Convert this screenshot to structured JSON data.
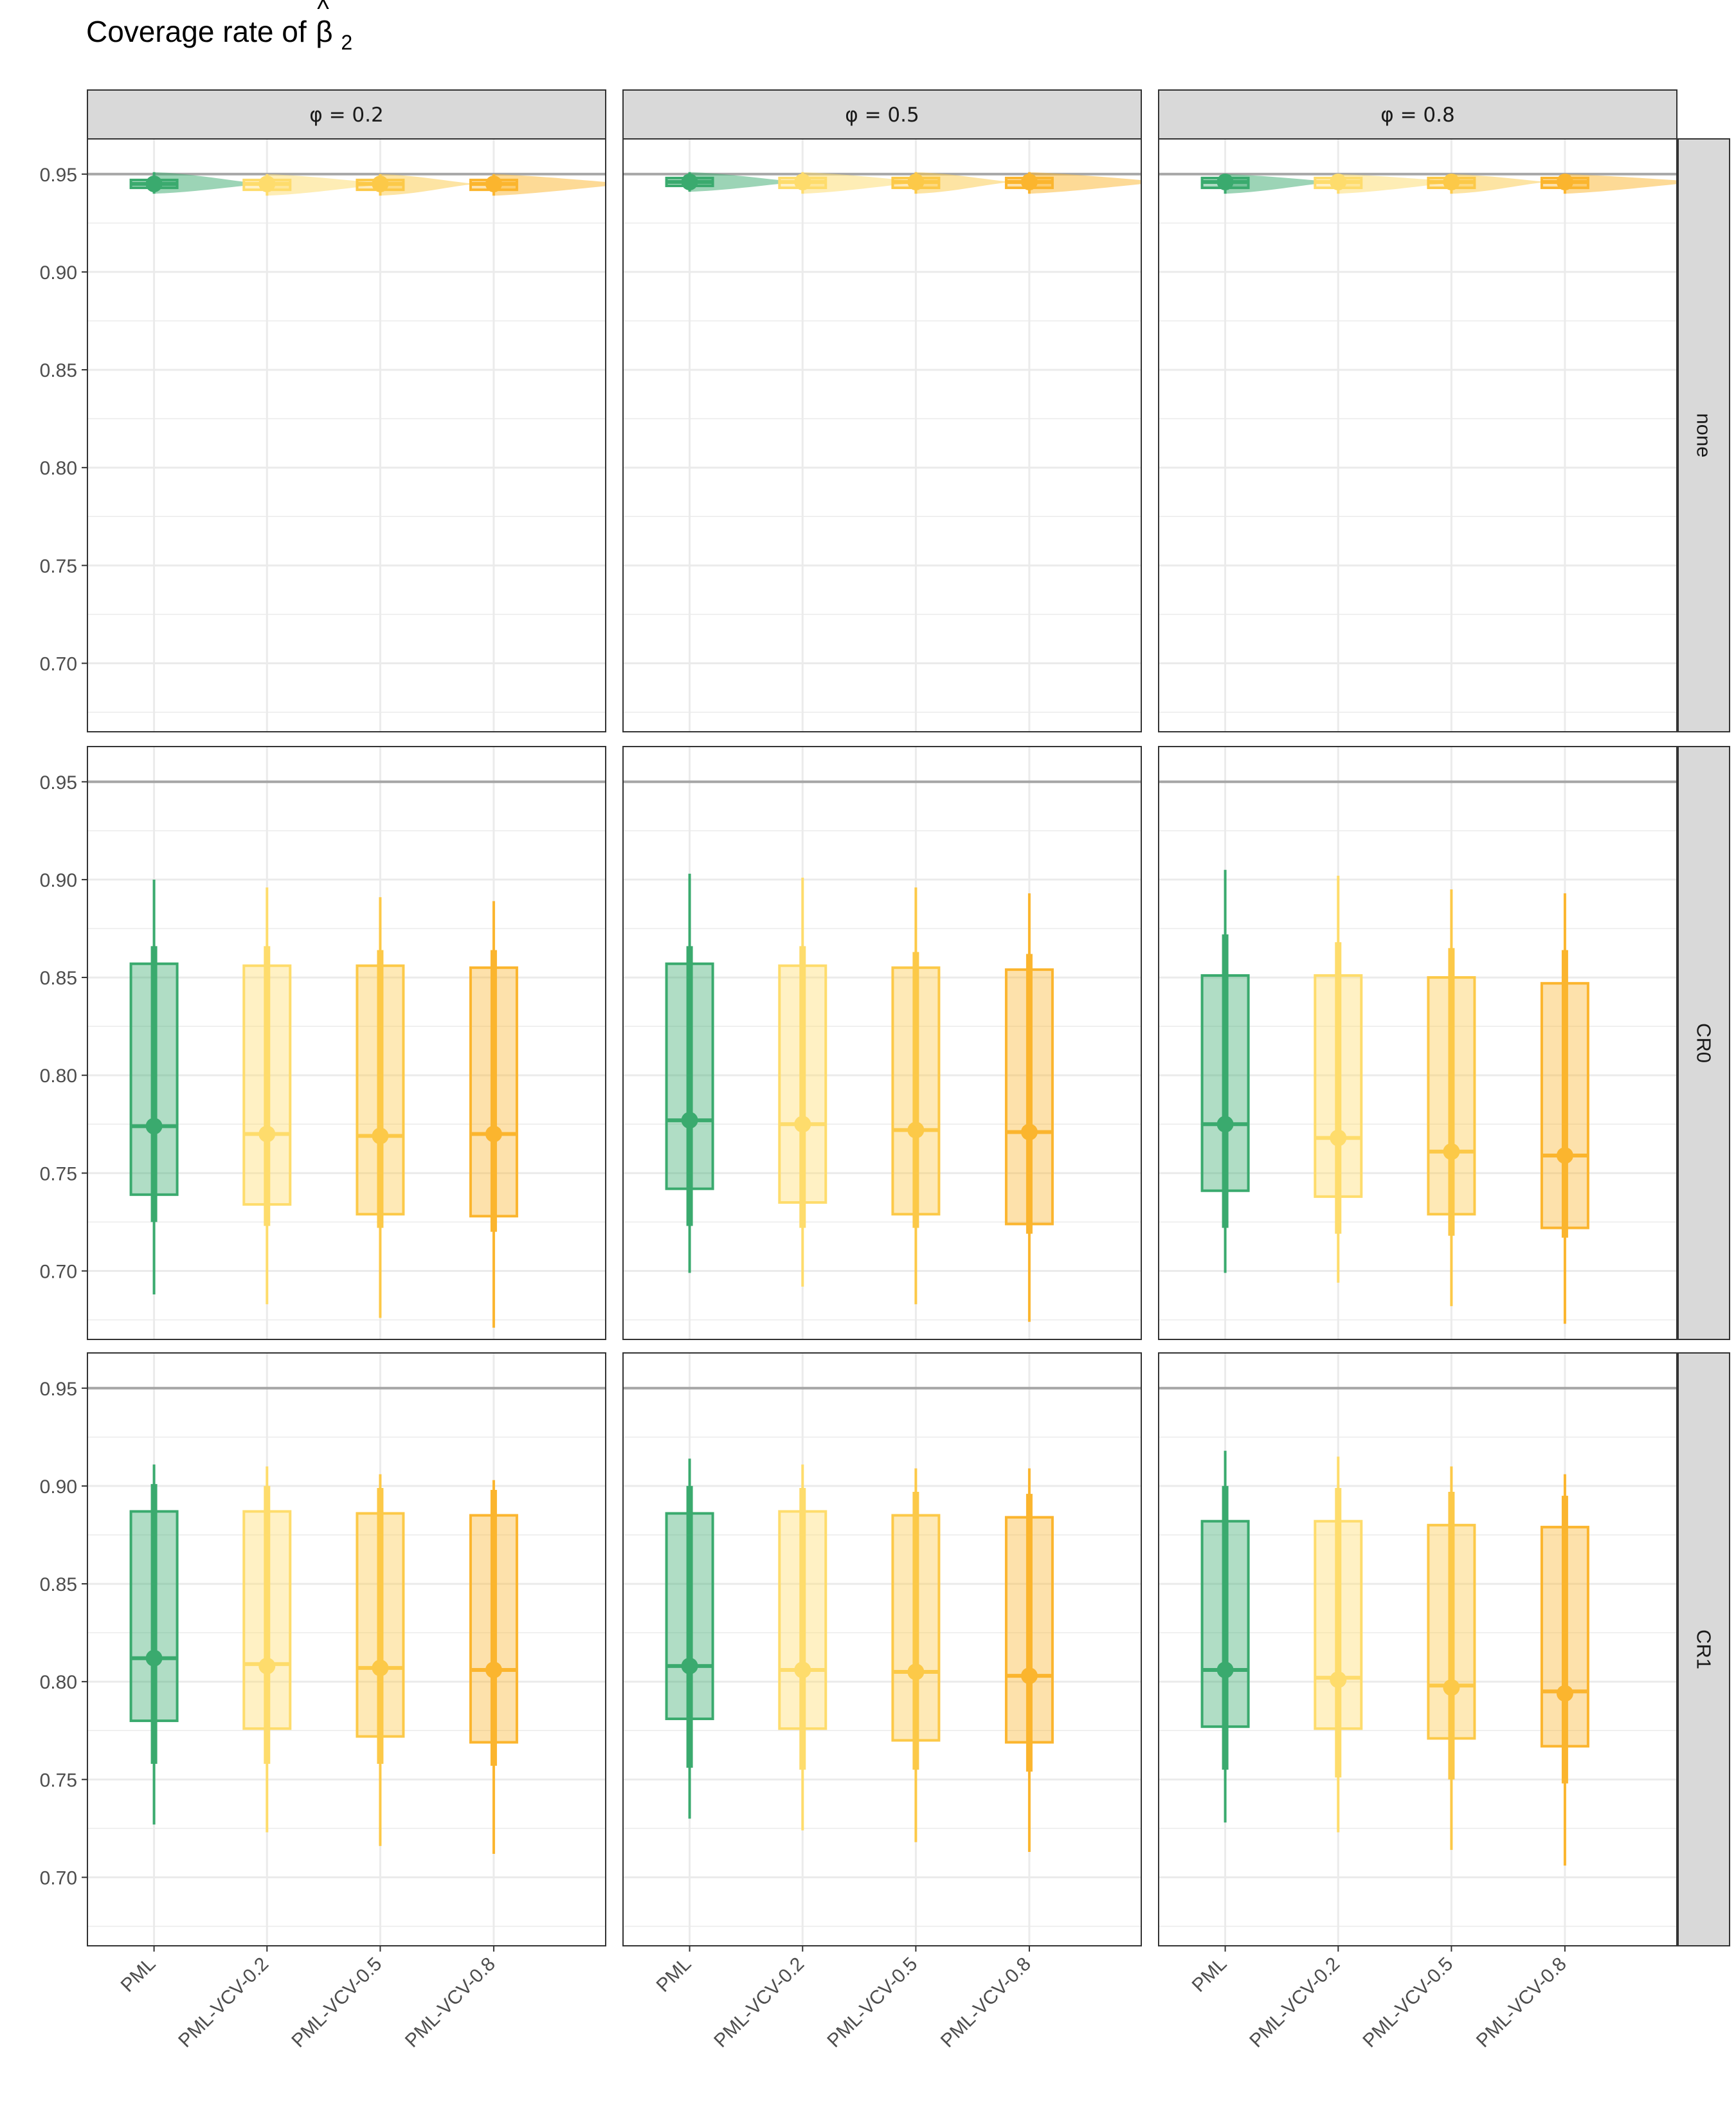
{
  "title": {
    "text": "Coverage rate of",
    "symbol": "β",
    "hat": "^",
    "subscript": "2"
  },
  "colors": {
    "PML": "#3aaa6e",
    "PML-VCV-0.2": "#fedc6c",
    "PML-VCV-0.5": "#fcc948",
    "PML-VCV-0.8": "#fbb52e",
    "strip_fill": "#d9d9d9",
    "reference_line": "#a6a6a6",
    "grid": "#ebebeb"
  },
  "chart_data": {
    "type": "boxplot-with-halfviolin",
    "columns": [
      "φ = 0.2",
      "φ = 0.5",
      "φ = 0.8"
    ],
    "rows": [
      "none",
      "CR0",
      "CR1"
    ],
    "categories": [
      "PML",
      "PML-VCV-0.2",
      "PML-VCV-0.5",
      "PML-VCV-0.8"
    ],
    "y_ticks": [
      0.7,
      0.75,
      0.8,
      0.85,
      0.9,
      0.95
    ],
    "y_tick_labels": [
      "0.70",
      "0.75",
      "0.80",
      "0.85",
      "0.90",
      "0.95"
    ],
    "ylim": [
      0.665,
      0.968
    ],
    "reference_line": 0.95,
    "grid": true,
    "panels": [
      {
        "row": "none",
        "col": "φ = 0.2",
        "boxes": [
          {
            "min": 0.94,
            "lo": 0.942,
            "q1": 0.943,
            "median": 0.945,
            "q3": 0.947,
            "hi": 0.948,
            "max": 0.951,
            "mean": 0.945,
            "violin": 0.935
          },
          {
            "min": 0.939,
            "lo": 0.941,
            "q1": 0.942,
            "median": 0.945,
            "q3": 0.947,
            "hi": 0.948,
            "max": 0.95,
            "mean": 0.945,
            "violin": 0.94
          },
          {
            "min": 0.939,
            "lo": 0.941,
            "q1": 0.942,
            "median": 0.945,
            "q3": 0.947,
            "hi": 0.948,
            "max": 0.95,
            "mean": 0.945,
            "violin": 0.93
          },
          {
            "min": 0.939,
            "lo": 0.941,
            "q1": 0.942,
            "median": 0.945,
            "q3": 0.947,
            "hi": 0.948,
            "max": 0.95,
            "mean": 0.945,
            "violin": 0.945
          }
        ]
      },
      {
        "row": "none",
        "col": "φ = 0.5",
        "boxes": [
          {
            "min": 0.941,
            "lo": 0.943,
            "q1": 0.944,
            "median": 0.946,
            "q3": 0.948,
            "hi": 0.949,
            "max": 0.951,
            "mean": 0.946,
            "violin": 0.935
          },
          {
            "min": 0.94,
            "lo": 0.942,
            "q1": 0.943,
            "median": 0.946,
            "q3": 0.948,
            "hi": 0.949,
            "max": 0.951,
            "mean": 0.946,
            "violin": 0.94
          },
          {
            "min": 0.94,
            "lo": 0.942,
            "q1": 0.943,
            "median": 0.946,
            "q3": 0.948,
            "hi": 0.949,
            "max": 0.951,
            "mean": 0.946,
            "violin": 0.93
          },
          {
            "min": 0.94,
            "lo": 0.942,
            "q1": 0.943,
            "median": 0.946,
            "q3": 0.948,
            "hi": 0.949,
            "max": 0.951,
            "mean": 0.946,
            "violin": 0.945
          }
        ]
      },
      {
        "row": "none",
        "col": "φ = 0.8",
        "boxes": [
          {
            "min": 0.94,
            "lo": 0.942,
            "q1": 0.943,
            "median": 0.946,
            "q3": 0.948,
            "hi": 0.949,
            "max": 0.95,
            "mean": 0.946,
            "violin": 0.935
          },
          {
            "min": 0.94,
            "lo": 0.942,
            "q1": 0.943,
            "median": 0.946,
            "q3": 0.948,
            "hi": 0.949,
            "max": 0.95,
            "mean": 0.946,
            "violin": 0.94
          },
          {
            "min": 0.94,
            "lo": 0.942,
            "q1": 0.943,
            "median": 0.946,
            "q3": 0.948,
            "hi": 0.949,
            "max": 0.95,
            "mean": 0.946,
            "violin": 0.93
          },
          {
            "min": 0.94,
            "lo": 0.942,
            "q1": 0.943,
            "median": 0.946,
            "q3": 0.948,
            "hi": 0.949,
            "max": 0.95,
            "mean": 0.946,
            "violin": 0.945
          }
        ]
      },
      {
        "row": "CR0",
        "col": "φ = 0.2",
        "boxes": [
          {
            "min": 0.688,
            "lo": 0.725,
            "q1": 0.739,
            "median": 0.774,
            "q3": 0.857,
            "hi": 0.866,
            "max": 0.9,
            "mean": 0.774
          },
          {
            "min": 0.683,
            "lo": 0.723,
            "q1": 0.734,
            "median": 0.77,
            "q3": 0.856,
            "hi": 0.866,
            "max": 0.896,
            "mean": 0.77
          },
          {
            "min": 0.676,
            "lo": 0.722,
            "q1": 0.729,
            "median": 0.769,
            "q3": 0.856,
            "hi": 0.864,
            "max": 0.891,
            "mean": 0.769
          },
          {
            "min": 0.671,
            "lo": 0.72,
            "q1": 0.728,
            "median": 0.77,
            "q3": 0.855,
            "hi": 0.864,
            "max": 0.889,
            "mean": 0.77
          }
        ]
      },
      {
        "row": "CR0",
        "col": "φ = 0.5",
        "boxes": [
          {
            "min": 0.699,
            "lo": 0.723,
            "q1": 0.742,
            "median": 0.777,
            "q3": 0.857,
            "hi": 0.866,
            "max": 0.903,
            "mean": 0.777
          },
          {
            "min": 0.692,
            "lo": 0.722,
            "q1": 0.735,
            "median": 0.775,
            "q3": 0.856,
            "hi": 0.866,
            "max": 0.901,
            "mean": 0.775
          },
          {
            "min": 0.683,
            "lo": 0.722,
            "q1": 0.729,
            "median": 0.772,
            "q3": 0.855,
            "hi": 0.863,
            "max": 0.896,
            "mean": 0.772
          },
          {
            "min": 0.674,
            "lo": 0.719,
            "q1": 0.724,
            "median": 0.771,
            "q3": 0.854,
            "hi": 0.862,
            "max": 0.893,
            "mean": 0.771
          }
        ]
      },
      {
        "row": "CR0",
        "col": "φ = 0.8",
        "boxes": [
          {
            "min": 0.699,
            "lo": 0.722,
            "q1": 0.741,
            "median": 0.775,
            "q3": 0.851,
            "hi": 0.872,
            "max": 0.905,
            "mean": 0.775
          },
          {
            "min": 0.694,
            "lo": 0.719,
            "q1": 0.738,
            "median": 0.768,
            "q3": 0.851,
            "hi": 0.868,
            "max": 0.902,
            "mean": 0.768
          },
          {
            "min": 0.682,
            "lo": 0.718,
            "q1": 0.729,
            "median": 0.761,
            "q3": 0.85,
            "hi": 0.865,
            "max": 0.895,
            "mean": 0.761
          },
          {
            "min": 0.673,
            "lo": 0.717,
            "q1": 0.722,
            "median": 0.759,
            "q3": 0.847,
            "hi": 0.864,
            "max": 0.893,
            "mean": 0.759
          }
        ]
      },
      {
        "row": "CR1",
        "col": "φ = 0.2",
        "boxes": [
          {
            "min": 0.727,
            "lo": 0.758,
            "q1": 0.78,
            "median": 0.812,
            "q3": 0.887,
            "hi": 0.901,
            "max": 0.911,
            "mean": 0.812
          },
          {
            "min": 0.723,
            "lo": 0.758,
            "q1": 0.776,
            "median": 0.809,
            "q3": 0.887,
            "hi": 0.9,
            "max": 0.91,
            "mean": 0.808
          },
          {
            "min": 0.716,
            "lo": 0.758,
            "q1": 0.772,
            "median": 0.807,
            "q3": 0.886,
            "hi": 0.899,
            "max": 0.906,
            "mean": 0.807
          },
          {
            "min": 0.712,
            "lo": 0.757,
            "q1": 0.769,
            "median": 0.806,
            "q3": 0.885,
            "hi": 0.898,
            "max": 0.903,
            "mean": 0.806
          }
        ]
      },
      {
        "row": "CR1",
        "col": "φ = 0.5",
        "boxes": [
          {
            "min": 0.73,
            "lo": 0.756,
            "q1": 0.781,
            "median": 0.808,
            "q3": 0.886,
            "hi": 0.9,
            "max": 0.914,
            "mean": 0.808
          },
          {
            "min": 0.724,
            "lo": 0.755,
            "q1": 0.776,
            "median": 0.806,
            "q3": 0.887,
            "hi": 0.899,
            "max": 0.911,
            "mean": 0.806
          },
          {
            "min": 0.718,
            "lo": 0.755,
            "q1": 0.77,
            "median": 0.805,
            "q3": 0.885,
            "hi": 0.897,
            "max": 0.909,
            "mean": 0.805
          },
          {
            "min": 0.713,
            "lo": 0.754,
            "q1": 0.769,
            "median": 0.803,
            "q3": 0.884,
            "hi": 0.896,
            "max": 0.909,
            "mean": 0.803
          }
        ]
      },
      {
        "row": "CR1",
        "col": "φ = 0.8",
        "boxes": [
          {
            "min": 0.728,
            "lo": 0.755,
            "q1": 0.777,
            "median": 0.806,
            "q3": 0.882,
            "hi": 0.9,
            "max": 0.918,
            "mean": 0.806
          },
          {
            "min": 0.723,
            "lo": 0.751,
            "q1": 0.776,
            "median": 0.802,
            "q3": 0.882,
            "hi": 0.899,
            "max": 0.915,
            "mean": 0.801
          },
          {
            "min": 0.714,
            "lo": 0.75,
            "q1": 0.771,
            "median": 0.798,
            "q3": 0.88,
            "hi": 0.897,
            "max": 0.91,
            "mean": 0.797
          },
          {
            "min": 0.706,
            "lo": 0.748,
            "q1": 0.767,
            "median": 0.795,
            "q3": 0.879,
            "hi": 0.895,
            "max": 0.906,
            "mean": 0.794
          }
        ]
      }
    ]
  }
}
